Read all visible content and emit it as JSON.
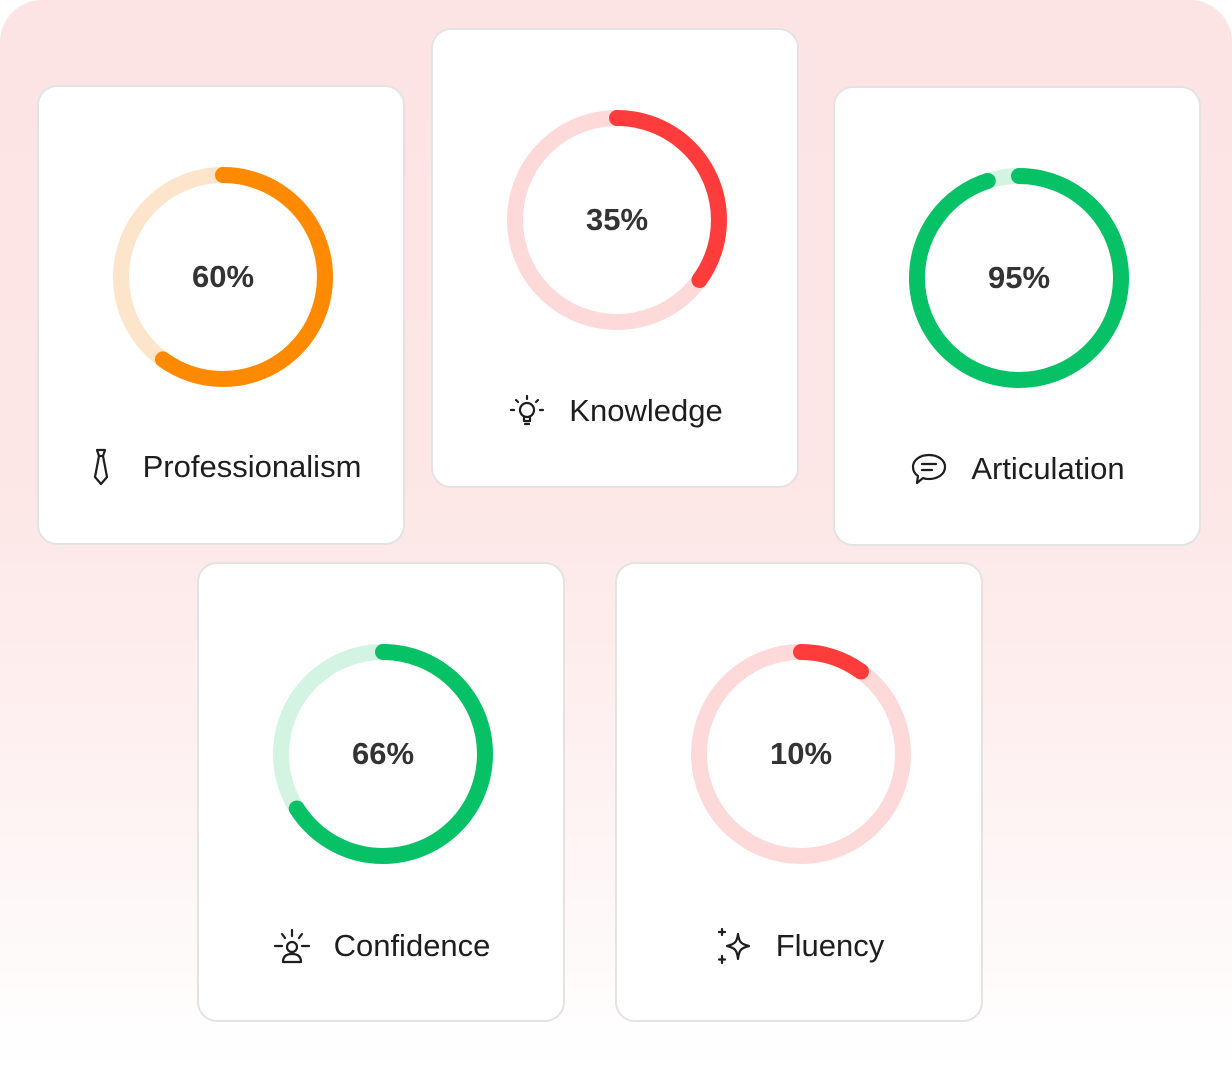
{
  "metrics": [
    {
      "label": "Professionalism",
      "value": 60,
      "value_text": "60%",
      "icon": "tie-icon",
      "color": "#ff8a00",
      "track_color": "#fde5cb"
    },
    {
      "label": "Knowledge",
      "value": 35,
      "value_text": "35%",
      "icon": "lightbulb-icon",
      "color": "#ff3c3c",
      "track_color": "#fdd9d9"
    },
    {
      "label": "Articulation",
      "value": 95,
      "value_text": "95%",
      "icon": "chat-bubble-icon",
      "color": "#07c167",
      "track_color": "#d3f3e3"
    },
    {
      "label": "Confidence",
      "value": 66,
      "value_text": "66%",
      "icon": "confident-person-icon",
      "color": "#07c167",
      "track_color": "#d3f3e3"
    },
    {
      "label": "Fluency",
      "value": 10,
      "value_text": "10%",
      "icon": "sparkle-icon",
      "color": "#ff3c3c",
      "track_color": "#fdd9d9"
    }
  ]
}
